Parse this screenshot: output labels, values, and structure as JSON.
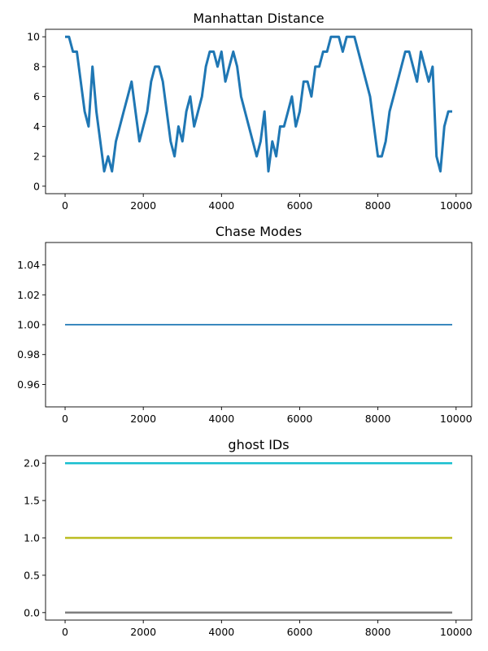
{
  "chart_data": [
    {
      "type": "line",
      "title": "Manhattan Distance",
      "xlabel": "",
      "ylabel": "",
      "xlim": [
        -500,
        10400
      ],
      "ylim": [
        -0.5,
        10.5
      ],
      "x_ticks": [
        0,
        2000,
        4000,
        6000,
        8000,
        10000
      ],
      "y_ticks": [
        0,
        2,
        4,
        6,
        8,
        10
      ],
      "x_tick_labels": [
        "0",
        "2000",
        "4000",
        "6000",
        "8000",
        "10000"
      ],
      "y_tick_labels": [
        "0",
        "2",
        "4",
        "6",
        "8",
        "10"
      ],
      "grid": false,
      "series": [
        {
          "color": "#1f77b4",
          "x": [
            0,
            100,
            200,
            300,
            400,
            500,
            600,
            700,
            800,
            900,
            1000,
            1100,
            1200,
            1300,
            1400,
            1500,
            1600,
            1700,
            1800,
            1900,
            2000,
            2100,
            2200,
            2300,
            2400,
            2500,
            2600,
            2700,
            2800,
            2900,
            3000,
            3100,
            3200,
            3300,
            3400,
            3500,
            3600,
            3700,
            3800,
            3900,
            4000,
            4100,
            4200,
            4300,
            4400,
            4500,
            4600,
            4700,
            4800,
            4900,
            5000,
            5100,
            5200,
            5300,
            5400,
            5500,
            5600,
            5700,
            5800,
            5900,
            6000,
            6100,
            6200,
            6300,
            6400,
            6500,
            6600,
            6700,
            6800,
            6900,
            7000,
            7100,
            7200,
            7300,
            7400,
            7500,
            7600,
            7700,
            7800,
            7900,
            8000,
            8100,
            8200,
            8300,
            8400,
            8500,
            8600,
            8700,
            8800,
            8900,
            9000,
            9100,
            9200,
            9300,
            9400,
            9500,
            9600,
            9700,
            9800,
            9900
          ],
          "y": [
            10,
            10,
            9,
            9,
            7,
            5,
            4,
            8,
            5,
            3,
            1,
            2,
            1,
            3,
            4,
            5,
            6,
            7,
            5,
            3,
            4,
            5,
            7,
            8,
            8,
            7,
            5,
            3,
            2,
            4,
            3,
            5,
            6,
            4,
            5,
            6,
            8,
            9,
            9,
            8,
            9,
            7,
            8,
            9,
            8,
            6,
            5,
            4,
            3,
            2,
            3,
            5,
            1,
            3,
            2,
            4,
            4,
            5,
            6,
            4,
            5,
            7,
            7,
            6,
            8,
            8,
            9,
            9,
            10,
            10,
            10,
            9,
            10,
            10,
            10,
            9,
            8,
            7,
            6,
            4,
            2,
            2,
            3,
            5,
            6,
            7,
            8,
            9,
            9,
            8,
            7,
            9,
            8,
            7,
            8,
            2,
            1,
            4,
            5,
            5
          ]
        }
      ]
    },
    {
      "type": "line",
      "title": "Chase Modes",
      "xlabel": "",
      "ylabel": "",
      "xlim": [
        -500,
        10400
      ],
      "ylim": [
        0.945,
        1.055
      ],
      "x_ticks": [
        0,
        2000,
        4000,
        6000,
        8000,
        10000
      ],
      "y_ticks": [
        0.96,
        0.98,
        1.0,
        1.02,
        1.04
      ],
      "x_tick_labels": [
        "0",
        "2000",
        "4000",
        "6000",
        "8000",
        "10000"
      ],
      "y_tick_labels": [
        "0.96",
        "0.98",
        "1.00",
        "1.02",
        "1.04"
      ],
      "grid": false,
      "series": [
        {
          "color": "#1f77b4",
          "x": [
            0,
            9900
          ],
          "y": [
            1.0,
            1.0
          ]
        }
      ]
    },
    {
      "type": "line",
      "title": "ghost IDs",
      "xlabel": "",
      "ylabel": "",
      "xlim": [
        -500,
        10400
      ],
      "ylim": [
        -0.1,
        2.1
      ],
      "x_ticks": [
        0,
        2000,
        4000,
        6000,
        8000,
        10000
      ],
      "y_ticks": [
        0.0,
        0.5,
        1.0,
        1.5,
        2.0
      ],
      "x_tick_labels": [
        "0",
        "2000",
        "4000",
        "6000",
        "8000",
        "10000"
      ],
      "y_tick_labels": [
        "0.0",
        "0.5",
        "1.0",
        "1.5",
        "2.0"
      ],
      "grid": false,
      "series": [
        {
          "color": "#7f7f7f",
          "x": [
            0,
            9900
          ],
          "y": [
            0,
            0
          ]
        },
        {
          "color": "#bcbd22",
          "x": [
            0,
            9900
          ],
          "y": [
            1,
            1
          ]
        },
        {
          "color": "#17becf",
          "x": [
            0,
            9900
          ],
          "y": [
            2,
            2
          ]
        }
      ]
    }
  ]
}
